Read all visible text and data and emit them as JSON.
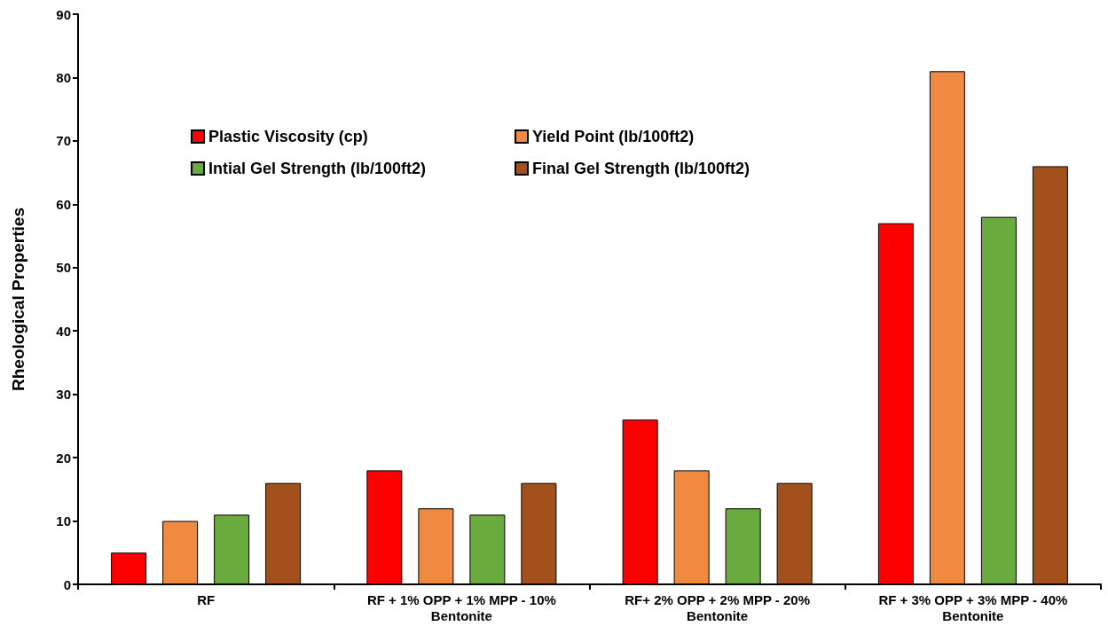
{
  "chart_data": {
    "type": "bar",
    "ylabel": "Rheological Properties",
    "categories": [
      "RF",
      "RF + 1% OPP + 1% MPP - 10%\nBentonite",
      "RF+ 2% OPP + 2% MPP - 20%\nBentonite",
      "RF + 3% OPP + 3% MPP - 40%\nBentonite"
    ],
    "series": [
      {
        "name": "Plastic Viscosity (cp)",
        "color": "#ff0000",
        "values": [
          5,
          18,
          26,
          57
        ]
      },
      {
        "name": "Yield Point (lb/100ft2)",
        "color": "#f08a40",
        "values": [
          10,
          12,
          18,
          81
        ]
      },
      {
        "name": "Intial Gel Strength (lb/100ft2)",
        "color": "#6aab40",
        "values": [
          11,
          11,
          12,
          58
        ]
      },
      {
        "name": "Final Gel Strength (lb/100ft2)",
        "color": "#a4501c",
        "values": [
          16,
          16,
          16,
          66
        ]
      }
    ],
    "ylim": [
      0,
      90
    ],
    "yticks": [
      0,
      10,
      20,
      30,
      40,
      50,
      60,
      70,
      80,
      90
    ],
    "grid": false,
    "legend": "top left"
  }
}
